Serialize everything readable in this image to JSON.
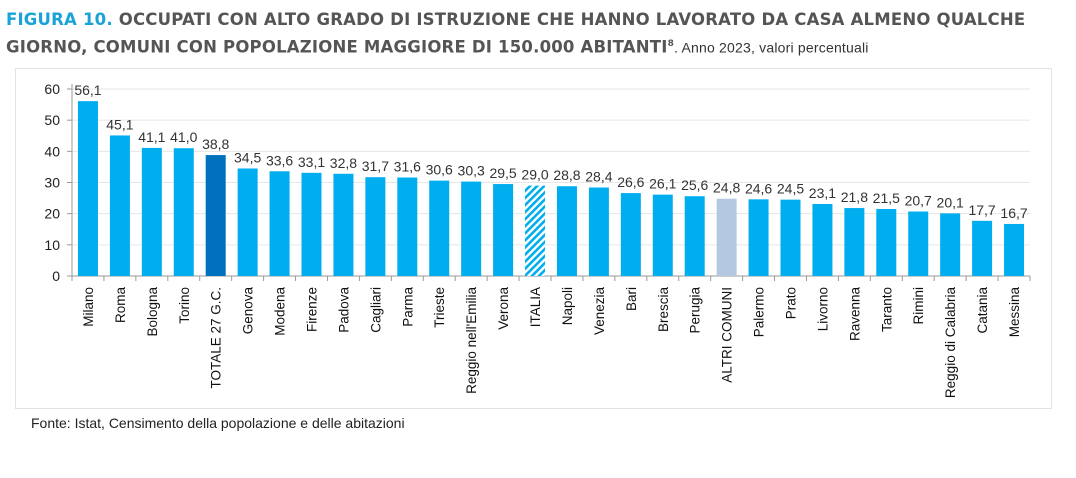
{
  "header": {
    "figure_label": "FIGURA 10.",
    "title": "OCCUPATI CON ALTO GRADO DI ISTRUZIONE CHE HANNO LAVORATO DA CASA ALMENO QUALCHE GIORNO, COMUNI CON POPOLAZIONE MAGGIORE DI 150.000 ABITANTI",
    "footnote_ref": "8",
    "subtitle": ". Anno 2023, valori percentuali"
  },
  "chart_data": {
    "type": "bar",
    "categories": [
      "Milano",
      "Roma",
      "Bologna",
      "Torino",
      "TOTALE 27 G.C.",
      "Genova",
      "Modena",
      "Firenze",
      "Padova",
      "Cagliari",
      "Parma",
      "Trieste",
      "Reggio nell'Emilia",
      "Verona",
      "ITALIA",
      "Napoli",
      "Venezia",
      "Bari",
      "Brescia",
      "Perugia",
      "ALTRI COMUNI",
      "Palermo",
      "Prato",
      "Livorno",
      "Ravenna",
      "Taranto",
      "Rimini",
      "Reggio di Calabria",
      "Catania",
      "Messina"
    ],
    "values": [
      56.1,
      45.1,
      41.1,
      41.0,
      38.8,
      34.5,
      33.6,
      33.1,
      32.8,
      31.7,
      31.6,
      30.6,
      30.3,
      29.5,
      29.0,
      28.8,
      28.4,
      26.6,
      26.1,
      25.6,
      24.8,
      24.6,
      24.5,
      23.1,
      21.8,
      21.5,
      20.7,
      20.1,
      17.7,
      16.7
    ],
    "data_labels": [
      "56,1",
      "45,1",
      "41,1",
      "41,0",
      "38,8",
      "34,5",
      "33,6",
      "33,1",
      "32,8",
      "31,7",
      "31,6",
      "30,6",
      "30,3",
      "29,5",
      "29,0",
      "28,8",
      "28,4",
      "26,6",
      "26,1",
      "25,6",
      "24,8",
      "24,6",
      "24,5",
      "23,1",
      "21,8",
      "21,5",
      "20,7",
      "20,1",
      "17,7",
      "16,7"
    ],
    "yticks": [
      "0",
      "10",
      "20",
      "30",
      "40",
      "50",
      "60"
    ],
    "ylim": [
      0,
      60
    ],
    "grid": true,
    "colors": {
      "default": "#00aeef",
      "TOTALE 27 G.C.": "#0071bc",
      "ITALIA": "#00aeef-hatched",
      "ALTRI COMUNI": "#b4c9e1"
    }
  },
  "source": "Fonte: Istat, Censimento della popolazione e delle abitazioni"
}
